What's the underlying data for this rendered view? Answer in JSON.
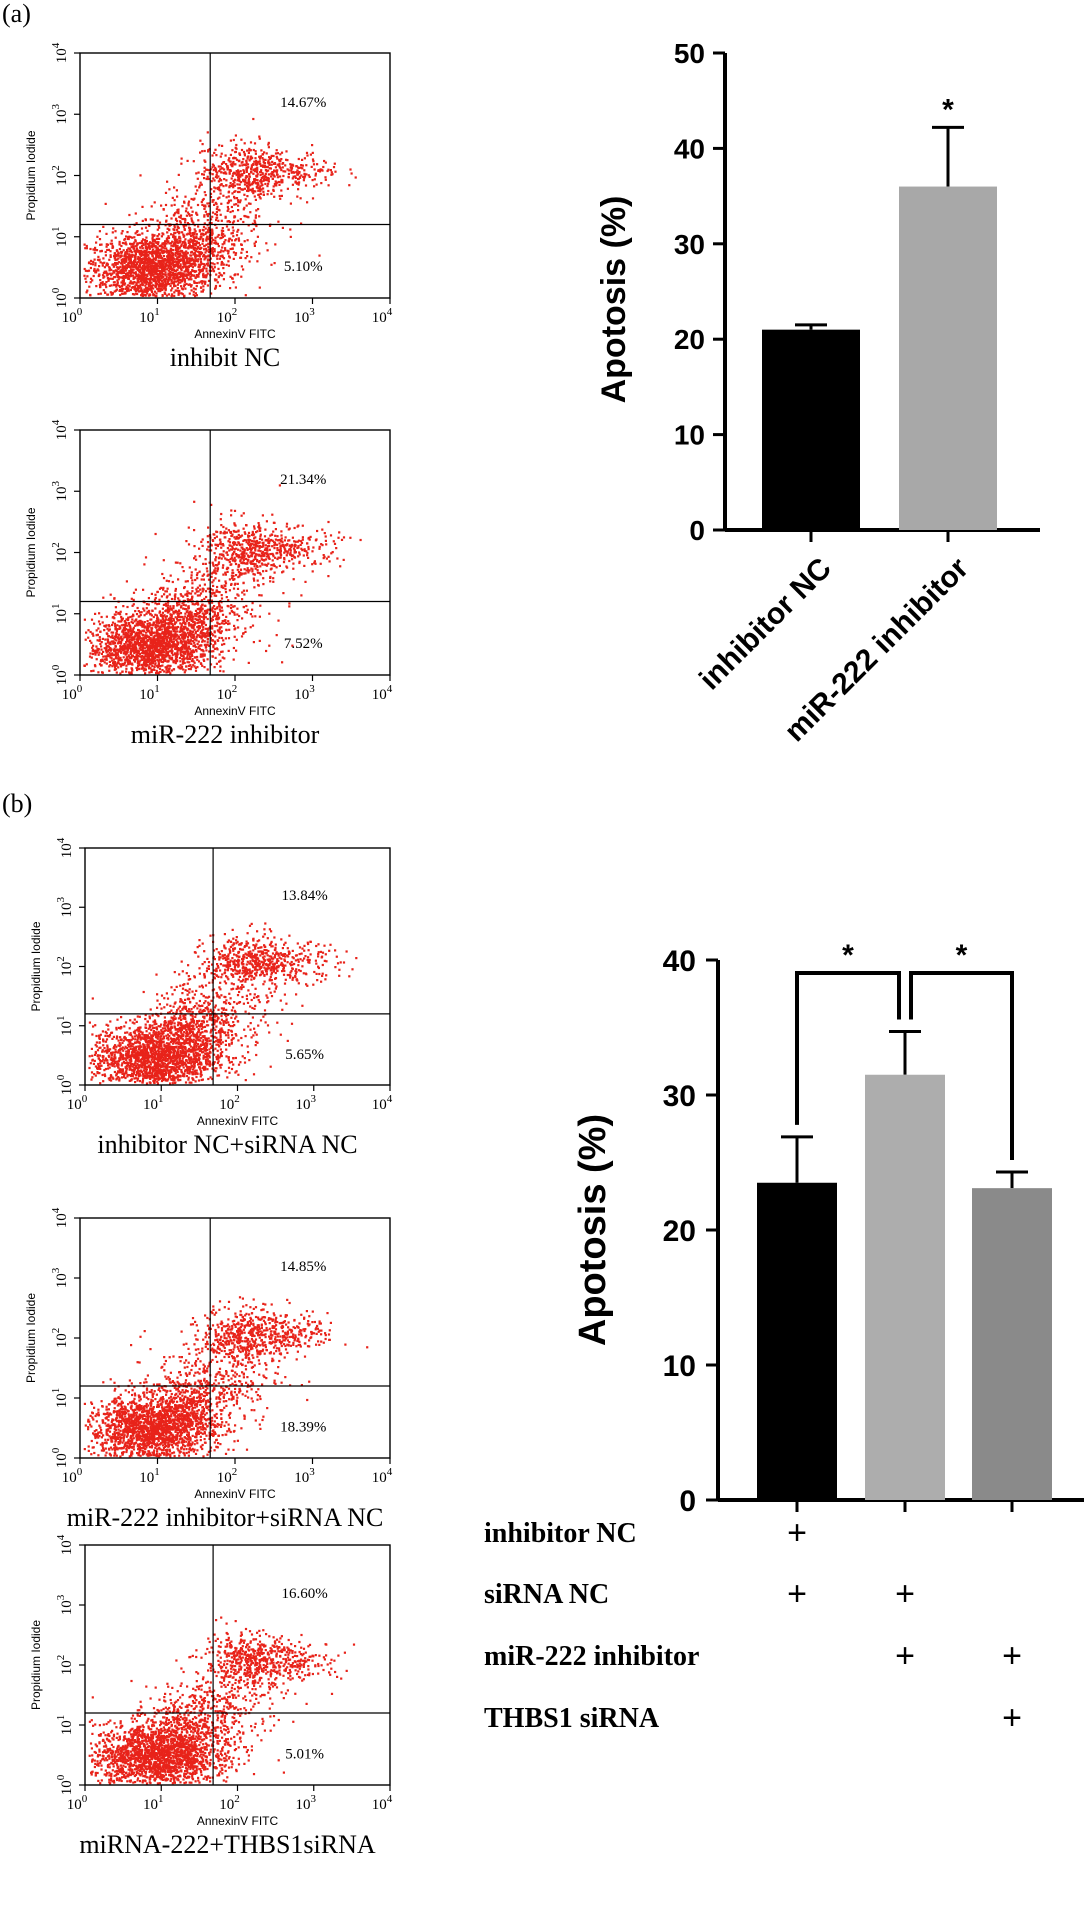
{
  "panel_labels": {
    "a": "(a)",
    "b": "(b)"
  },
  "flow_common": {
    "ylabel": "Propidium Iodide",
    "xlabel": "AnnexinV FITC",
    "tick_labels": [
      "10",
      "10",
      "10",
      "10",
      "10"
    ],
    "tick_exponents": [
      "0",
      "1",
      "2",
      "3",
      "4"
    ]
  },
  "flow_plots": [
    {
      "caption": "inhibit NC",
      "upper_right": "14.67%",
      "lower_right": "5.10%"
    },
    {
      "caption": "miR-222 inhibitor",
      "upper_right": "21.34%",
      "lower_right": "7.52%"
    },
    {
      "caption": "inhibitor NC+siRNA NC",
      "upper_right": "13.84%",
      "lower_right": "5.65%"
    },
    {
      "caption": "miR-222 inhibitor+siRNA NC",
      "upper_right": "14.85%",
      "lower_right": "18.39%"
    },
    {
      "caption": "miRNA-222+THBS1siRNA",
      "upper_right": "16.60%",
      "lower_right": "5.01%"
    }
  ],
  "chart_data": [
    {
      "type": "bar",
      "ylabel": "Apotosis (%)",
      "xlabel": "",
      "ylim": [
        0,
        50
      ],
      "yticks": [
        "0",
        "10",
        "20",
        "30",
        "40",
        "50"
      ],
      "categories": [
        "inhibitor NC",
        "miR-222 inhibitor"
      ],
      "values": [
        21.0,
        36.0
      ],
      "errors": [
        0.5,
        6.2
      ],
      "colors": [
        "#000000",
        "#a8a8a8"
      ],
      "annotations": [
        {
          "text": "*",
          "target": "miR-222 inhibitor"
        }
      ]
    },
    {
      "type": "bar",
      "ylabel": "Apotosis (%)",
      "xlabel": "",
      "ylim": [
        0,
        40
      ],
      "yticks": [
        "0",
        "10",
        "20",
        "30",
        "40"
      ],
      "values": [
        23.5,
        31.5,
        23.1
      ],
      "errors": [
        3.4,
        3.2,
        1.2
      ],
      "colors": [
        "#000000",
        "#adadad",
        "#8a8a8a"
      ],
      "significance": [
        {
          "text": "*",
          "from": 0,
          "to": 1
        },
        {
          "text": "*",
          "from": 1,
          "to": 2
        }
      ],
      "condition_table": {
        "rows": [
          {
            "label": "inhibitor NC",
            "marks": [
              "+",
              "",
              ""
            ]
          },
          {
            "label": "siRNA NC",
            "marks": [
              "+",
              "+",
              ""
            ]
          },
          {
            "label": "miR-222 inhibitor",
            "marks": [
              "",
              "+",
              "+"
            ]
          },
          {
            "label": "THBS1 siRNA",
            "marks": [
              "",
              "",
              "+"
            ]
          }
        ]
      }
    }
  ]
}
